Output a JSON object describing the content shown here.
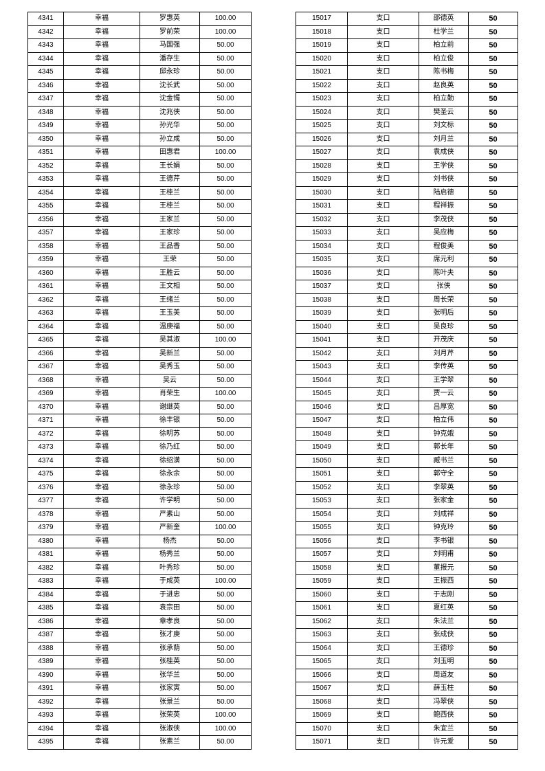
{
  "left_table": {
    "village": "幸福",
    "rows": [
      [
        "4341",
        "罗惠英",
        "100.00"
      ],
      [
        "4342",
        "罗前荣",
        "100.00"
      ],
      [
        "4343",
        "马国强",
        "50.00"
      ],
      [
        "4344",
        "潘存生",
        "50.00"
      ],
      [
        "4345",
        "邱永珍",
        "50.00"
      ],
      [
        "4346",
        "沈长武",
        "50.00"
      ],
      [
        "4347",
        "沈金镯",
        "50.00"
      ],
      [
        "4348",
        "沈兆侠",
        "50.00"
      ],
      [
        "4349",
        "孙光华",
        "50.00"
      ],
      [
        "4350",
        "孙立成",
        "50.00"
      ],
      [
        "4351",
        "田惠君",
        "100.00"
      ],
      [
        "4352",
        "王长娟",
        "50.00"
      ],
      [
        "4353",
        "王德芹",
        "50.00"
      ],
      [
        "4354",
        "王桂兰",
        "50.00"
      ],
      [
        "4355",
        "王桂兰",
        "50.00"
      ],
      [
        "4356",
        "王家兰",
        "50.00"
      ],
      [
        "4357",
        "王家珍",
        "50.00"
      ],
      [
        "4358",
        "王品香",
        "50.00"
      ],
      [
        "4359",
        "王荣",
        "50.00"
      ],
      [
        "4360",
        "王胜云",
        "50.00"
      ],
      [
        "4361",
        "王文相",
        "50.00"
      ],
      [
        "4362",
        "王绪兰",
        "50.00"
      ],
      [
        "4363",
        "王玉美",
        "50.00"
      ],
      [
        "4364",
        "温庚福",
        "50.00"
      ],
      [
        "4365",
        "吴其淑",
        "100.00"
      ],
      [
        "4366",
        "吴新兰",
        "50.00"
      ],
      [
        "4367",
        "吴秀玉",
        "50.00"
      ],
      [
        "4368",
        "吴云",
        "50.00"
      ],
      [
        "4369",
        "肖荣生",
        "100.00"
      ],
      [
        "4370",
        "谢继英",
        "50.00"
      ],
      [
        "4371",
        "徐丰银",
        "50.00"
      ],
      [
        "4372",
        "徐明苏",
        "50.00"
      ],
      [
        "4373",
        "徐乃红",
        "50.00"
      ],
      [
        "4374",
        "徐绍潢",
        "50.00"
      ],
      [
        "4375",
        "徐永余",
        "50.00"
      ],
      [
        "4376",
        "徐永珍",
        "50.00"
      ],
      [
        "4377",
        "许学明",
        "50.00"
      ],
      [
        "4378",
        "严素山",
        "50.00"
      ],
      [
        "4379",
        "严新奎",
        "100.00"
      ],
      [
        "4380",
        "杨杰",
        "50.00"
      ],
      [
        "4381",
        "杨秀兰",
        "50.00"
      ],
      [
        "4382",
        "叶秀珍",
        "50.00"
      ],
      [
        "4383",
        "于成英",
        "100.00"
      ],
      [
        "4384",
        "于进忠",
        "50.00"
      ],
      [
        "4385",
        "袁宗田",
        "50.00"
      ],
      [
        "4386",
        "章孝良",
        "50.00"
      ],
      [
        "4387",
        "张才庚",
        "50.00"
      ],
      [
        "4388",
        "张承荫",
        "50.00"
      ],
      [
        "4389",
        "张桂英",
        "50.00"
      ],
      [
        "4390",
        "张华兰",
        "50.00"
      ],
      [
        "4391",
        "张家寅",
        "50.00"
      ],
      [
        "4392",
        "张景兰",
        "50.00"
      ],
      [
        "4393",
        "张荣英",
        "100.00"
      ],
      [
        "4394",
        "张淑侠",
        "100.00"
      ],
      [
        "4395",
        "张素兰",
        "50.00"
      ]
    ]
  },
  "right_table": {
    "village": "支口",
    "rows": [
      [
        "15017",
        "邵德英",
        "50"
      ],
      [
        "15018",
        "杜学兰",
        "50"
      ],
      [
        "15019",
        "柏立前",
        "50"
      ],
      [
        "15020",
        "柏立俊",
        "50"
      ],
      [
        "15021",
        "陈书梅",
        "50"
      ],
      [
        "15022",
        "赵良英",
        "50"
      ],
      [
        "15023",
        "柏立勤",
        "50"
      ],
      [
        "15024",
        "樊圣云",
        "50"
      ],
      [
        "15025",
        "刘文标",
        "50"
      ],
      [
        "15026",
        "刘月兰",
        "50"
      ],
      [
        "15027",
        "袁成侠",
        "50"
      ],
      [
        "15028",
        "王学侠",
        "50"
      ],
      [
        "15029",
        "刘书侠",
        "50"
      ],
      [
        "15030",
        "陆启德",
        "50"
      ],
      [
        "15031",
        "程祥振",
        "50"
      ],
      [
        "15032",
        "李茂侠",
        "50"
      ],
      [
        "15033",
        "吴应梅",
        "50"
      ],
      [
        "15034",
        "程俊美",
        "50"
      ],
      [
        "15035",
        "席元利",
        "50"
      ],
      [
        "15036",
        "陈叶夫",
        "50"
      ],
      [
        "15037",
        "张侠",
        "50"
      ],
      [
        "15038",
        "周长荣",
        "50"
      ],
      [
        "15039",
        "张明后",
        "50"
      ],
      [
        "15040",
        "吴良珍",
        "50"
      ],
      [
        "15041",
        "开茂庆",
        "50"
      ],
      [
        "15042",
        "刘月芹",
        "50"
      ],
      [
        "15043",
        "李传英",
        "50"
      ],
      [
        "15044",
        "王学翠",
        "50"
      ],
      [
        "15045",
        "贾一云",
        "50"
      ],
      [
        "15046",
        "吕厚宽",
        "50"
      ],
      [
        "15047",
        "柏立伟",
        "50"
      ],
      [
        "15048",
        "钟克娥",
        "50"
      ],
      [
        "15049",
        "郭长年",
        "50"
      ],
      [
        "15050",
        "臧书兰",
        "50"
      ],
      [
        "15051",
        "郭守全",
        "50"
      ],
      [
        "15052",
        "李翠英",
        "50"
      ],
      [
        "15053",
        "张家金",
        "50"
      ],
      [
        "15054",
        "刘成祥",
        "50"
      ],
      [
        "15055",
        "钟克玲",
        "50"
      ],
      [
        "15056",
        "李书银",
        "50"
      ],
      [
        "15057",
        "刘明甫",
        "50"
      ],
      [
        "15058",
        "董报元",
        "50"
      ],
      [
        "15059",
        "王振西",
        "50"
      ],
      [
        "15060",
        "于志刚",
        "50"
      ],
      [
        "15061",
        "夏红英",
        "50"
      ],
      [
        "15062",
        "朱法兰",
        "50"
      ],
      [
        "15063",
        "张成侠",
        "50"
      ],
      [
        "15064",
        "王德珍",
        "50"
      ],
      [
        "15065",
        "刘玉明",
        "50"
      ],
      [
        "15066",
        "周道友",
        "50"
      ],
      [
        "15067",
        "薛玉柱",
        "50"
      ],
      [
        "15068",
        "冯翠侠",
        "50"
      ],
      [
        "15069",
        "鲍西侠",
        "50"
      ],
      [
        "15070",
        "朱宜兰",
        "50"
      ],
      [
        "15071",
        "许元爱",
        "50"
      ]
    ]
  }
}
